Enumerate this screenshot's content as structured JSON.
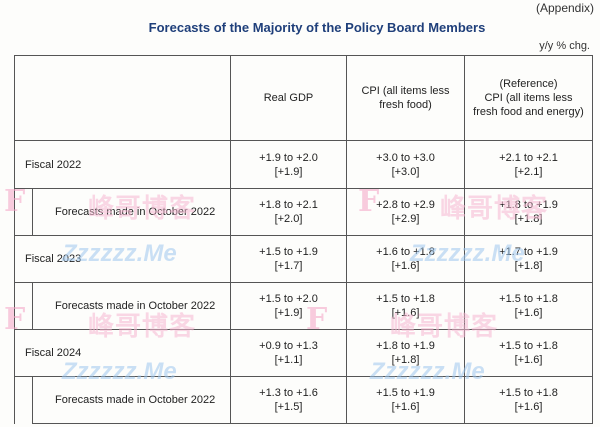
{
  "header": {
    "appendix": "(Appendix)",
    "title": "Forecasts of the Majority of the Policy Board Members",
    "unit": "y/y % chg."
  },
  "columns": {
    "real_gdp": "Real GDP",
    "cpi_line1": "CPI (all items less",
    "cpi_line2": "fresh food)",
    "ref_line1": "(Reference)",
    "ref_line2": "CPI (all items less",
    "ref_line3": "fresh food and energy)"
  },
  "rows": [
    {
      "label": "Fiscal 2022",
      "gdp_range": "+1.9 to +2.0",
      "gdp_median": "[+1.9]",
      "cpi_range": "+3.0 to +3.0",
      "cpi_median": "[+3.0]",
      "ref_range": "+2.1 to +2.1",
      "ref_median": "[+2.1]"
    },
    {
      "label": "Forecasts made in October 2022",
      "gdp_range": "+1.8 to +2.1",
      "gdp_median": "[+2.0]",
      "cpi_range": "+2.8 to +2.9",
      "cpi_median": "[+2.9]",
      "ref_range": "+1.8 to +1.9",
      "ref_median": "[+1.8]"
    },
    {
      "label": "Fiscal 2023",
      "gdp_range": "+1.5 to +1.9",
      "gdp_median": "[+1.7]",
      "cpi_range": "+1.6 to +1.8",
      "cpi_median": "[+1.6]",
      "ref_range": "+1.7 to +1.9",
      "ref_median": "[+1.8]"
    },
    {
      "label": "Forecasts made in October 2022",
      "gdp_range": "+1.5 to +2.0",
      "gdp_median": "[+1.9]",
      "cpi_range": "+1.5 to +1.8",
      "cpi_median": "[+1.6]",
      "ref_range": "+1.5 to +1.8",
      "ref_median": "[+1.6]"
    },
    {
      "label": "Fiscal 2024",
      "gdp_range": "+0.9 to +1.3",
      "gdp_median": "[+1.1]",
      "cpi_range": "+1.8 to +1.9",
      "cpi_median": "[+1.8]",
      "ref_range": "+1.5 to +1.8",
      "ref_median": "[+1.6]"
    },
    {
      "label": "Forecasts made in October 2022",
      "gdp_range": "+1.3 to +1.6",
      "gdp_median": "[+1.5]",
      "cpi_range": "+1.5 to +1.9",
      "cpi_median": "[+1.6]",
      "ref_range": "+1.5 to +1.8",
      "ref_median": "[+1.6]"
    }
  ],
  "watermark": {
    "logo": "F",
    "text_cn": "峰哥博客",
    "url": "Zzzzzz.Me"
  }
}
